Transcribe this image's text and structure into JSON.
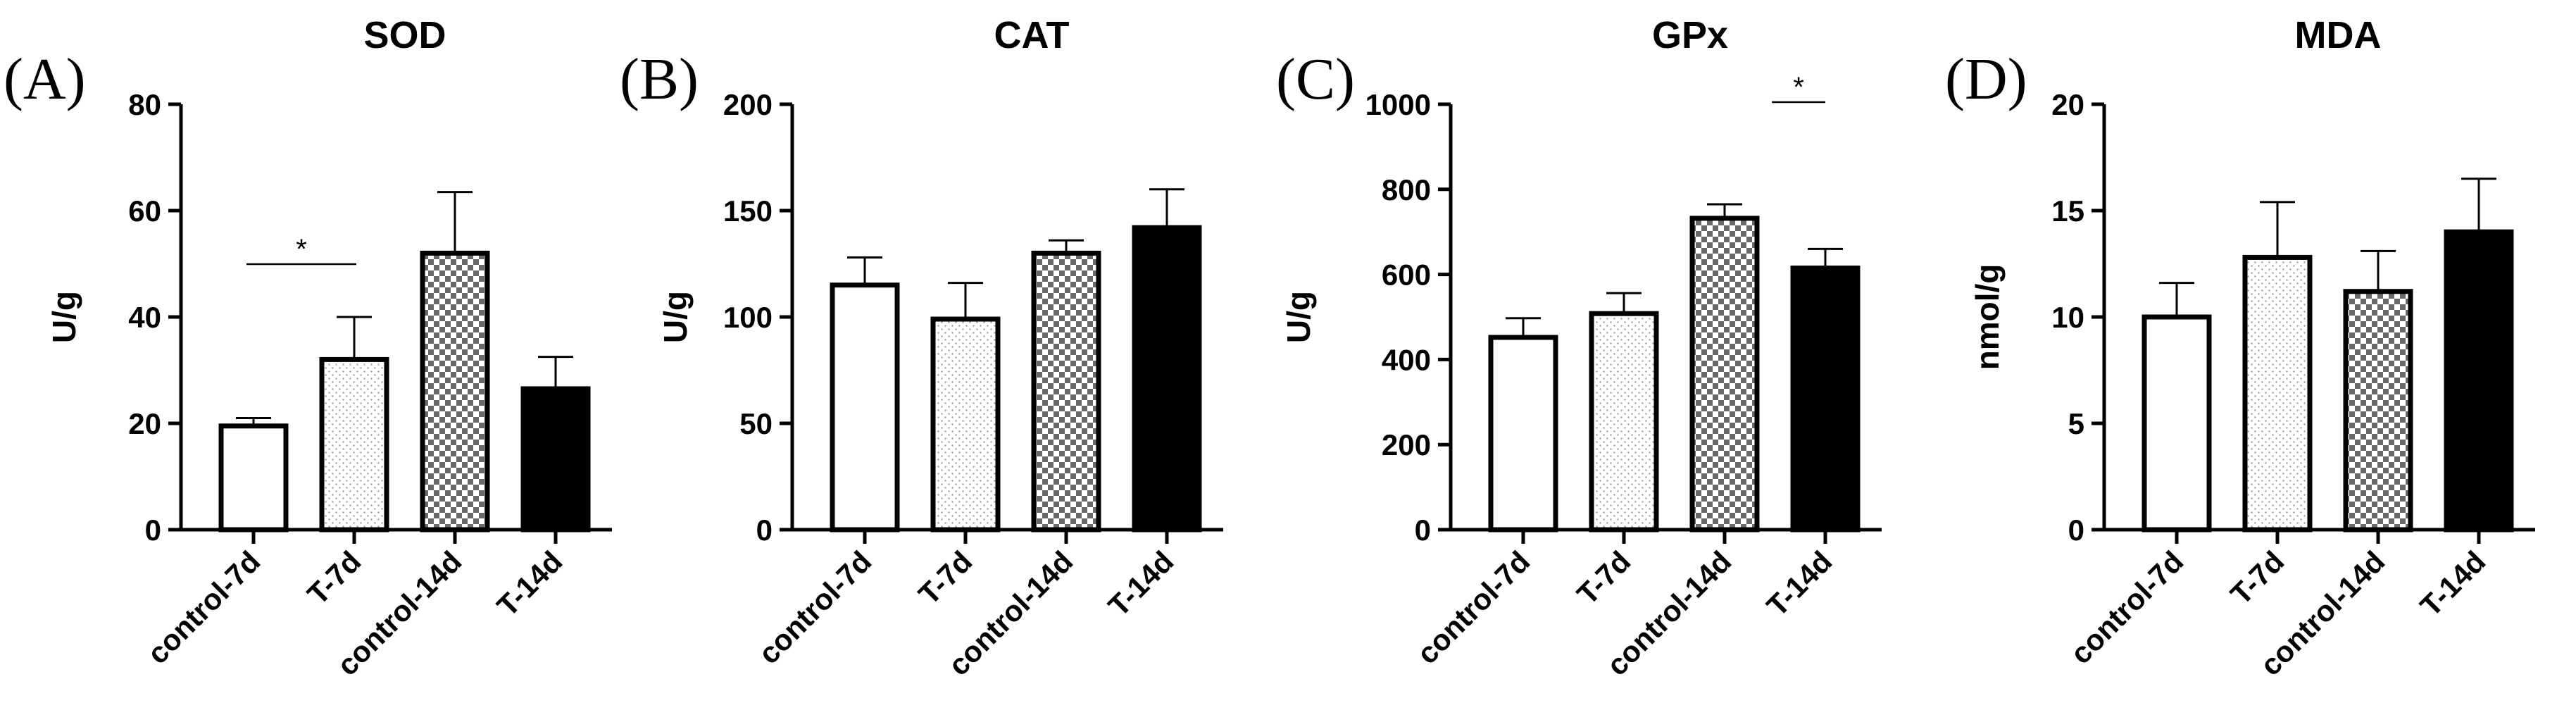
{
  "chart_data": [
    {
      "type": "bar",
      "panel_label": "(A)",
      "title": "SOD",
      "ylabel": "U/g",
      "xlabel": "",
      "ylim": [
        0,
        80
      ],
      "yticks": [
        0,
        20,
        40,
        60,
        80
      ],
      "categories": [
        "control-7d",
        "T-7d",
        "control-14d",
        "T-14d"
      ],
      "values": [
        19.5,
        32,
        52,
        26.5
      ],
      "errors": [
        1.5,
        8,
        11.5,
        6
      ],
      "patterns": [
        "white",
        "dots",
        "checker",
        "black"
      ],
      "significance": [
        {
          "from": 0,
          "to": 1,
          "y": 50,
          "label": "*"
        }
      ]
    },
    {
      "type": "bar",
      "panel_label": "(B)",
      "title": "CAT",
      "ylabel": "U/g",
      "xlabel": "",
      "ylim": [
        0,
        200
      ],
      "yticks": [
        0,
        50,
        100,
        150,
        200
      ],
      "categories": [
        "control-7d",
        "T-7d",
        "control-14d",
        "T-14d"
      ],
      "values": [
        115,
        99,
        130,
        142
      ],
      "errors": [
        13,
        17,
        6,
        18
      ],
      "patterns": [
        "white",
        "dots",
        "checker",
        "black"
      ],
      "significance": []
    },
    {
      "type": "bar",
      "panel_label": "(C)",
      "title": "GPx",
      "ylabel": "U/g",
      "xlabel": "",
      "ylim": [
        0,
        1000
      ],
      "yticks": [
        0,
        200,
        400,
        600,
        800,
        1000
      ],
      "categories": [
        "control-7d",
        "T-7d",
        "control-14d",
        "T-14d"
      ],
      "values": [
        452,
        508,
        732,
        615
      ],
      "errors": [
        45,
        48,
        33,
        45
      ],
      "patterns": [
        "white",
        "dots",
        "checker",
        "black"
      ],
      "significance": [
        {
          "from": 2.5,
          "to": 3.2,
          "y": 1000,
          "label": "*",
          "note": "short line above GPx T-14d region"
        }
      ]
    },
    {
      "type": "bar",
      "panel_label": "(D)",
      "title": "MDA",
      "ylabel": "nmol/g",
      "xlabel": "",
      "ylim": [
        0,
        20
      ],
      "yticks": [
        0,
        5,
        10,
        15,
        20
      ],
      "categories": [
        "control-7d",
        "T-7d",
        "control-14d",
        "T-14d"
      ],
      "values": [
        10,
        12.8,
        11.2,
        14
      ],
      "errors": [
        1.6,
        2.6,
        1.9,
        2.5
      ],
      "patterns": [
        "white",
        "dots",
        "checker",
        "black"
      ],
      "significance": []
    }
  ]
}
